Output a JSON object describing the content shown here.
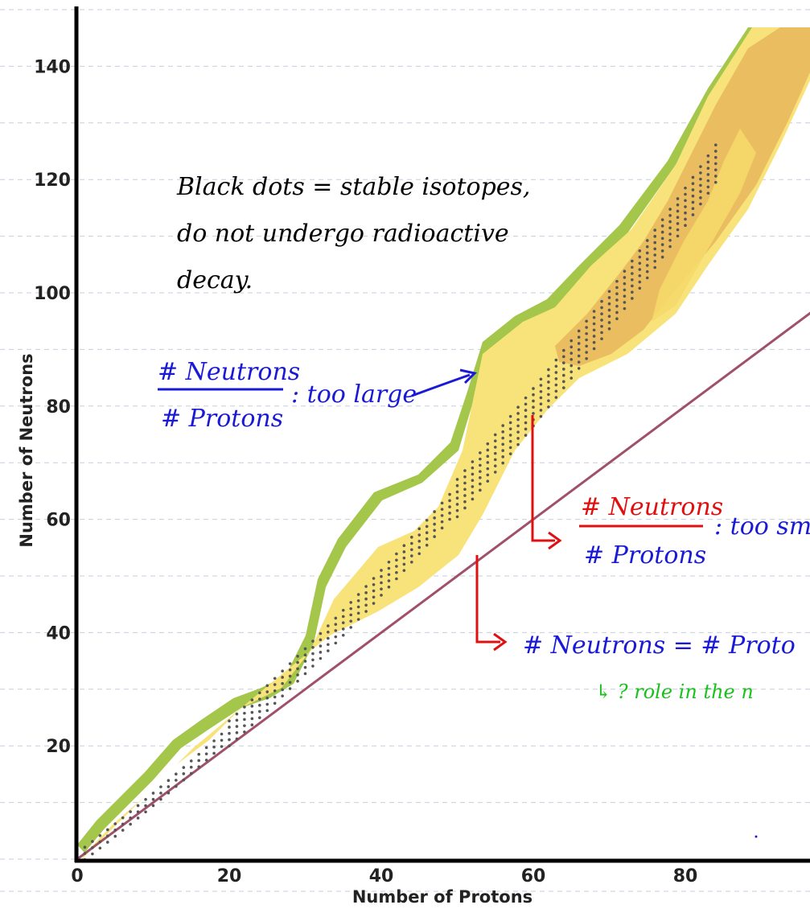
{
  "chart_data": {
    "type": "scatter",
    "title": "",
    "xlabel": "Number of Protons",
    "ylabel": "Number of Neutrons",
    "xlim": [
      0,
      100
    ],
    "ylim": [
      0,
      140
    ],
    "x_ticks": [
      "0",
      "20",
      "40",
      "60",
      "80"
    ],
    "y_ticks": [
      "20",
      "40",
      "60",
      "80",
      "100",
      "120",
      "140"
    ],
    "grid": "horizontal dashed",
    "series": [
      {
        "name": "",
        "type": "band",
        "color": "#a4c64a",
        "values": []
      },
      {
        "name": "",
        "type": "band",
        "color": "#f8e27a",
        "values": []
      },
      {
        "name": "",
        "type": "band",
        "color": "#e7b75c",
        "values": []
      },
      {
        "name": "",
        "type": "scatter",
        "color": "#555555",
        "values": []
      },
      {
        "name": "",
        "type": "line",
        "color": "#a0506a",
        "x": [
          0,
          100
        ],
        "y": [
          0,
          100
        ]
      }
    ],
    "annotations": {
      "stable_note": [
        "Black dots = stable isotopes,",
        "do not undergo radioactive",
        "decay."
      ],
      "large_ratio": {
        "numerator": "# Neutrons",
        "denominator": "# Protons",
        "comment": ": too large"
      },
      "small_ratio": {
        "numerator": "# Neutrons",
        "denominator": "# Protons",
        "comment": ": too sm"
      },
      "equal_line": "# Neutrons = # Proto",
      "role_note": "↳ ? role in the n"
    },
    "colors": {
      "note_black": "#000000",
      "note_blue": "#1a1ad6",
      "note_red": "#e01010",
      "note_green": "#1bc11b"
    }
  }
}
